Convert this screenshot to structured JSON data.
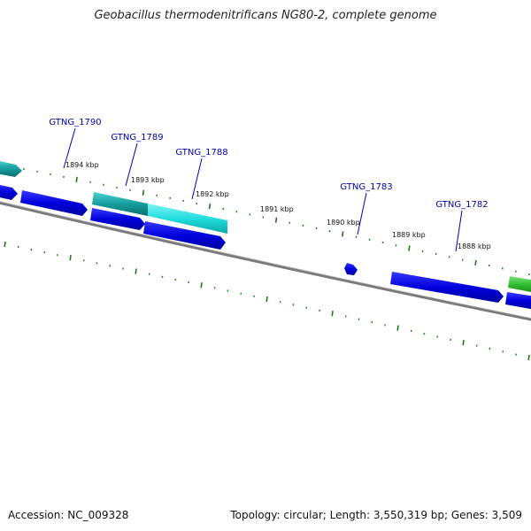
{
  "title": "Geobacillus thermodenitrificans NG80-2, complete genome",
  "footer": {
    "accession": "Accession: NC_009328",
    "summary": "Topology: circular; Length: 3,550,319 bp; Genes: 3,509"
  },
  "colors": {
    "backbone": "#7a7a7a",
    "gene_blue": "#0000dd",
    "gene_cyan": "#22dddd",
    "gene_teal": "#169e9e",
    "gene_green": "#2fbf2f",
    "tick": "#1a7a1a",
    "label": "#0000aa",
    "kbp_label": "#111111"
  },
  "kbp_labels": [
    "1894 kbp",
    "1893 kbp",
    "1892 kbp",
    "1891 kbp",
    "1890 kbp",
    "1889 kbp",
    "1888 kbp"
  ],
  "gene_labels": [
    "GTNG_1790",
    "GTNG_1789",
    "GTNG_1788",
    "GTNG_1783",
    "GTNG_1782"
  ]
}
